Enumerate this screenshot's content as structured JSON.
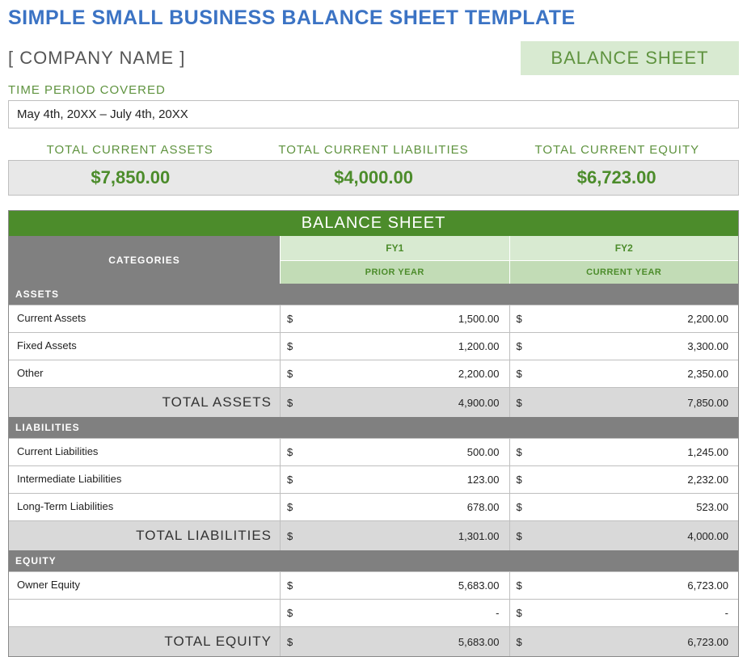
{
  "page_title": "SIMPLE SMALL BUSINESS BALANCE SHEET TEMPLATE",
  "company_name": "[ COMPANY NAME ]",
  "balance_sheet_badge": "BALANCE SHEET",
  "time_period_label": "TIME PERIOD COVERED",
  "time_period_value": "May 4th, 20XX – July 4th, 20XX",
  "totals": {
    "assets": {
      "label": "TOTAL CURRENT ASSETS",
      "amount": "$7,850.00"
    },
    "liabilities": {
      "label": "TOTAL CURRENT LIABILITIES",
      "amount": "$4,000.00"
    },
    "equity": {
      "label": "TOTAL CURRENT EQUITY",
      "amount": "$6,723.00"
    }
  },
  "sheet": {
    "title": "BALANCE SHEET",
    "categories_label": "CATEGORIES",
    "fy1": "FY1",
    "fy2": "FY2",
    "prior_year": "PRIOR YEAR",
    "current_year": "CURRENT YEAR",
    "currency_symbol": "$",
    "sections": {
      "assets": {
        "header": "ASSETS",
        "rows": [
          {
            "label": "Current Assets",
            "fy1": "1,500.00",
            "fy2": "2,200.00"
          },
          {
            "label": "Fixed Assets",
            "fy1": "1,200.00",
            "fy2": "3,300.00"
          },
          {
            "label": "Other",
            "fy1": "2,200.00",
            "fy2": "2,350.00"
          }
        ],
        "total": {
          "label": "TOTAL ASSETS",
          "fy1": "4,900.00",
          "fy2": "7,850.00"
        }
      },
      "liabilities": {
        "header": "LIABILITIES",
        "rows": [
          {
            "label": "Current Liabilities",
            "fy1": "500.00",
            "fy2": "1,245.00"
          },
          {
            "label": "Intermediate Liabilities",
            "fy1": "123.00",
            "fy2": "2,232.00"
          },
          {
            "label": "Long-Term Liabilities",
            "fy1": "678.00",
            "fy2": "523.00"
          }
        ],
        "total": {
          "label": "TOTAL LIABILITIES",
          "fy1": "1,301.00",
          "fy2": "4,000.00"
        }
      },
      "equity": {
        "header": "EQUITY",
        "rows": [
          {
            "label": "Owner Equity",
            "fy1": "5,683.00",
            "fy2": "6,723.00"
          },
          {
            "label": "",
            "fy1": "-",
            "fy2": "-"
          }
        ],
        "total": {
          "label": "TOTAL EQUITY",
          "fy1": "5,683.00",
          "fy2": "6,723.00"
        }
      }
    }
  },
  "colors": {
    "title_blue": "#3b73c4",
    "green_primary": "#4c8c2b",
    "green_text": "#5f933f",
    "green_light": "#d8ead1",
    "green_mid": "#c2dcb6",
    "gray_header": "#808080",
    "gray_total": "#d9d9d9",
    "gray_bar": "#e8e8e8",
    "border": "#bfbfbf"
  },
  "typography": {
    "title_fontsize": 25,
    "header_fontsize": 22,
    "body_fontsize": 13,
    "font_family": "Century Gothic"
  }
}
